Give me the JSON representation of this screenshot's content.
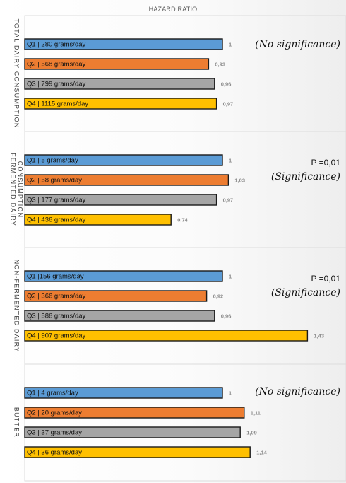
{
  "chart_data": {
    "type": "bar",
    "orientation": "horizontal",
    "title": "HAZARD RATIO",
    "grid": false,
    "colors": {
      "Q1": "#5b9bd5",
      "Q2": "#ed7d31",
      "Q3": "#a5a5a5",
      "Q4": "#ffc000"
    },
    "groups": [
      {
        "label": "TOTAL DAIRY CONSUMPTION",
        "note_line1": "",
        "note_line2": "(No significance)",
        "bars": [
          {
            "quartile": "Q1",
            "label": "Q1 | 280 grams/day",
            "value": 1.0,
            "value_label": "1"
          },
          {
            "quartile": "Q2",
            "label": "Q2 | 568 grams/day",
            "value": 0.93,
            "value_label": "0,93"
          },
          {
            "quartile": "Q3",
            "label": "Q3 | 799 grams/day",
            "value": 0.96,
            "value_label": "0,96"
          },
          {
            "quartile": "Q4",
            "label": "Q4 | 1115 grams/day",
            "value": 0.97,
            "value_label": "0,97"
          }
        ]
      },
      {
        "label": "FERMENTED DAIRY CONSUMPTION",
        "note_line1": "P =0,01",
        "note_line2": "(Significance)",
        "bars": [
          {
            "quartile": "Q1",
            "label": "Q1 | 5 grams/day",
            "value": 1.0,
            "value_label": "1"
          },
          {
            "quartile": "Q2",
            "label": "Q2 | 58 grams/day",
            "value": 1.03,
            "value_label": "1,03"
          },
          {
            "quartile": "Q3",
            "label": "Q3 | 177 grams/day",
            "value": 0.97,
            "value_label": "0,97"
          },
          {
            "quartile": "Q4",
            "label": "Q4 | 436 grams/day",
            "value": 0.74,
            "value_label": "0,74"
          }
        ]
      },
      {
        "label": "NON-FERMENTED DAIRY",
        "note_line1": "P =0,01",
        "note_line2": "(Significance)",
        "bars": [
          {
            "quartile": "Q1",
            "label": "Q1 |156 grams/day",
            "value": 1.0,
            "value_label": "1"
          },
          {
            "quartile": "Q2",
            "label": "Q2 | 366 grams/day",
            "value": 0.92,
            "value_label": "0,92"
          },
          {
            "quartile": "Q3",
            "label": "Q3 | 586 grams/day",
            "value": 0.96,
            "value_label": "0,96"
          },
          {
            "quartile": "Q4",
            "label": "Q4 | 907 grams/day",
            "value": 1.43,
            "value_label": "1,43"
          }
        ]
      },
      {
        "label": "BUTTER",
        "note_line1": "",
        "note_line2": "(No significance)",
        "bars": [
          {
            "quartile": "Q1",
            "label": "Q1 | 4 grams/day",
            "value": 1.0,
            "value_label": "1"
          },
          {
            "quartile": "Q2",
            "label": "Q2 | 20 grams/day",
            "value": 1.11,
            "value_label": "1,11"
          },
          {
            "quartile": "Q3",
            "label": "Q3 | 37 grams/day",
            "value": 1.09,
            "value_label": "1,09"
          },
          {
            "quartile": "Q4",
            "label": "Q4 | 36 grams/day",
            "value": 1.14,
            "value_label": "1,14"
          }
        ]
      }
    ]
  }
}
